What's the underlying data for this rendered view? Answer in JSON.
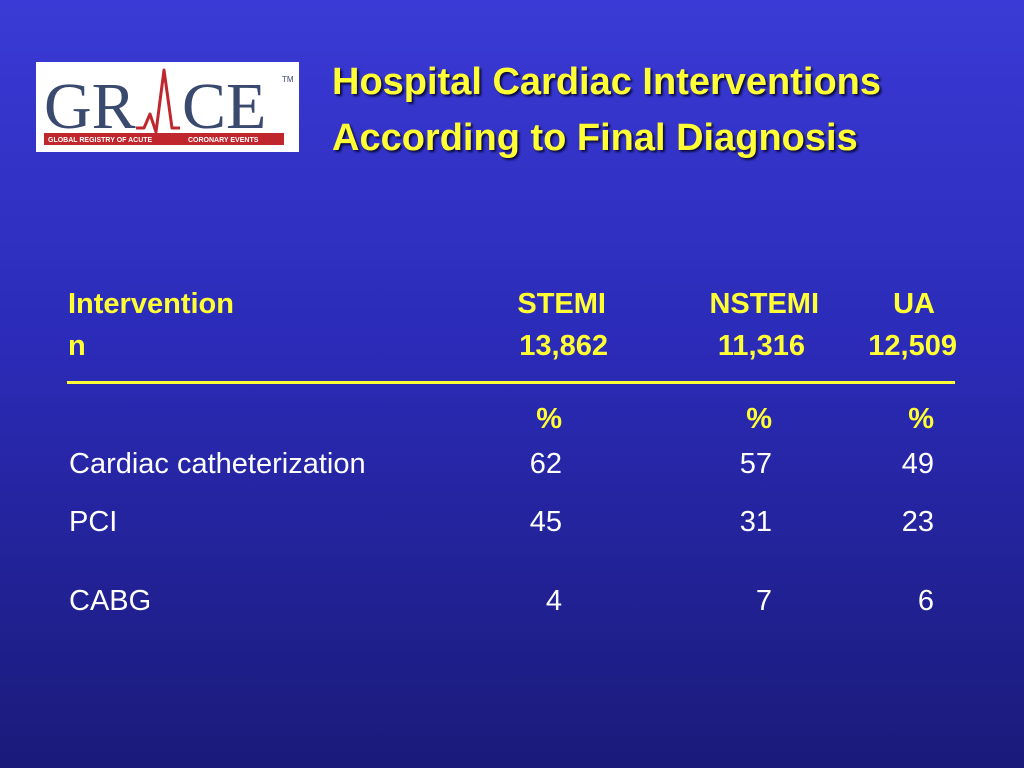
{
  "logo": {
    "word": "GRACE",
    "tagline_left": "GLOBAL REGISTRY OF ACUTE",
    "tagline_right": "CORONARY EVENTS",
    "trademark": "TM"
  },
  "title": {
    "line1": "Hospital Cardiac Interventions",
    "line2": "According to Final Diagnosis"
  },
  "table": {
    "header_label": "Intervention",
    "n_label": "n",
    "columns": [
      {
        "name": "STEMI",
        "n": "13,862",
        "unit": "%"
      },
      {
        "name": "NSTEMI",
        "n": "11,316",
        "unit": "%"
      },
      {
        "name": "UA",
        "n": "12,509",
        "unit": "%"
      }
    ],
    "rows": [
      {
        "label": "Cardiac catheterization",
        "values": [
          "62",
          "57",
          "49"
        ]
      },
      {
        "label": "PCI",
        "values": [
          "45",
          "31",
          "23"
        ]
      },
      {
        "label": "CABG",
        "values": [
          "4",
          "7",
          "6"
        ]
      }
    ]
  },
  "colors": {
    "background": "#2b2bb8",
    "title": "#ffff33",
    "body_text": "#ffffff",
    "logo_red": "#c0272d",
    "logo_blue": "#3a4a6e"
  }
}
